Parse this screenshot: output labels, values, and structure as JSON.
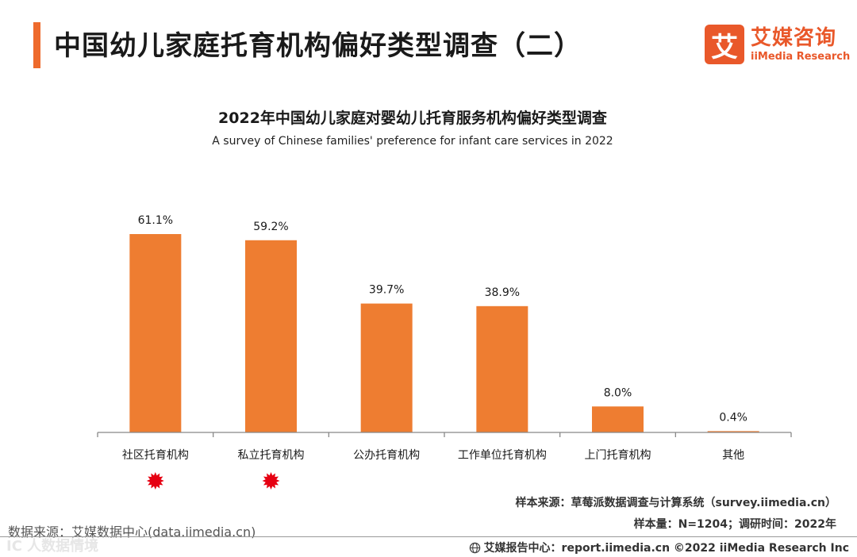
{
  "header": {
    "title": "中国幼儿家庭托育机构偏好类型调查（二）",
    "logo_mark": "艾",
    "logo_cn": "艾媒咨询",
    "logo_en": "iiMedia Research"
  },
  "chart_data": {
    "type": "bar",
    "title": "2022年中国幼儿家庭对婴幼儿托育服务机构偏好类型调查",
    "subtitle": "A survey of Chinese families' preference for infant care services in 2022",
    "categories": [
      "社区托育机构",
      "私立托育机构",
      "公办托育机构",
      "工作单位托育机构",
      "上门托育机构",
      "其他"
    ],
    "values": [
      61.1,
      59.2,
      39.7,
      38.9,
      8.0,
      0.4
    ],
    "value_labels": [
      "61.1%",
      "59.2%",
      "39.7%",
      "38.9%",
      "8.0%",
      "0.4%"
    ],
    "unit": "%",
    "ylim": [
      0,
      61.1
    ],
    "highlighted": [
      0,
      1
    ],
    "colors": {
      "bar": "#ee7d31",
      "highlight_mark": "#e60012"
    }
  },
  "sources": {
    "sample_source": "样本来源：草莓派数据调查与计算系统（survey.iimedia.cn）",
    "sample_size": "样本量：N=1204；调研时间：2022年",
    "data_source": "数据来源：艾媒数据中心(data.iimedia.cn)",
    "watermark": "IC 人数据情境",
    "footer": "艾媒报告中心：report.iimedia.cn   ©2022  iiMedia Research  Inc"
  }
}
